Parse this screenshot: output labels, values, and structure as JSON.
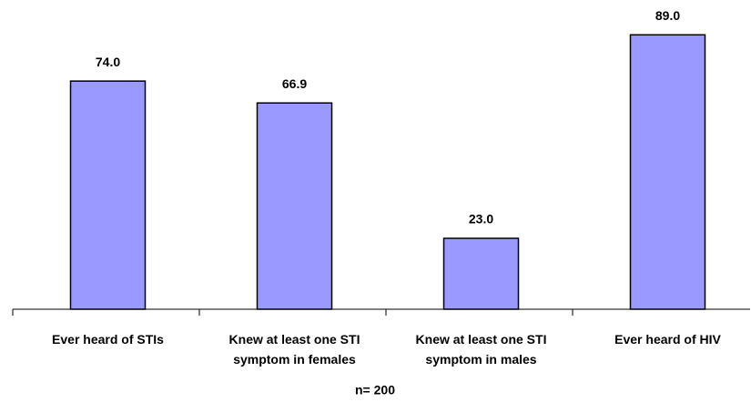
{
  "chart_data": {
    "type": "bar",
    "categories": [
      "Ever heard of STIs",
      "Knew at least one STI symptom in females",
      "Knew at least one STI symptom in males",
      "Ever heard of HIV"
    ],
    "values": [
      74.0,
      66.9,
      23.0,
      89.0
    ],
    "value_labels": [
      "74.0",
      "66.9",
      "23.0",
      "89.0"
    ],
    "x_label": "n= 200",
    "color": "#9999ff",
    "ylim": [
      0,
      100
    ]
  }
}
